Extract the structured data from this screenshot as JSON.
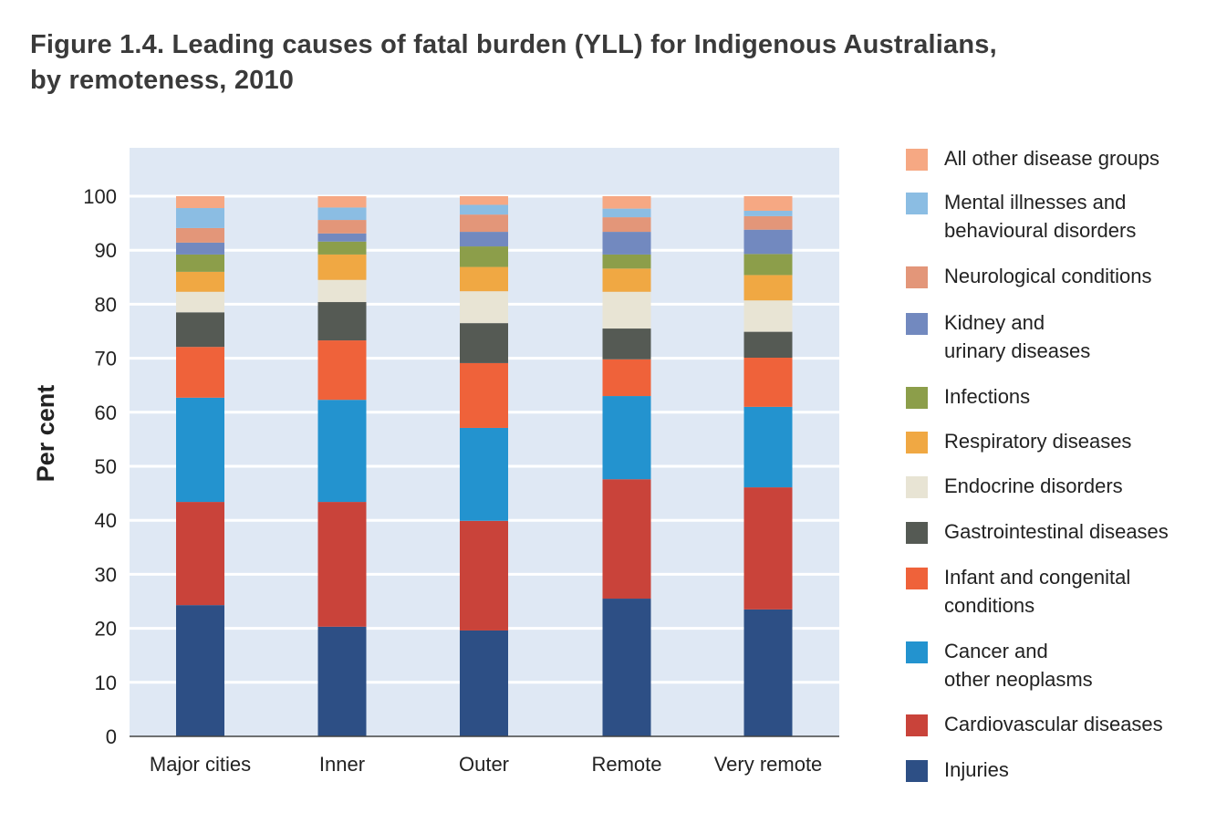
{
  "chart_data": {
    "type": "bar",
    "stacked": true,
    "title": "Figure 1.4. Leading causes of fatal burden (YLL) for Indigenous Australians, by remoteness, 2010",
    "title_lines": [
      "Figure 1.4. Leading causes of fatal burden (YLL) for Indigenous Australians,",
      "by remoteness, 2010"
    ],
    "xlabel": "",
    "ylabel": "Per cent",
    "ylim": [
      0,
      100
    ],
    "yticks": [
      0,
      10,
      20,
      30,
      40,
      50,
      60,
      70,
      80,
      90,
      100
    ],
    "grid": true,
    "legend_position": "right",
    "categories": [
      "Major cities",
      "Inner",
      "Outer",
      "Remote",
      "Very remote"
    ],
    "series": [
      {
        "name": "Injuries",
        "color": "#2d4f85",
        "values": [
          24.3,
          20.3,
          19.6,
          25.5,
          23.5
        ]
      },
      {
        "name": "Cardiovascular diseases",
        "color": "#c9433a",
        "values": [
          19.1,
          23.1,
          20.3,
          22.1,
          22.6
        ]
      },
      {
        "name": "Cancer and other neoplasms",
        "color": "#2393cf",
        "values": [
          19.3,
          18.9,
          17.2,
          15.4,
          14.9
        ]
      },
      {
        "name": "Infant and congenital conditions",
        "color": "#ef623a",
        "values": [
          9.4,
          11.0,
          12.0,
          6.8,
          9.1
        ]
      },
      {
        "name": "Gastrointestinal diseases",
        "color": "#555a54",
        "values": [
          6.4,
          7.1,
          7.4,
          5.7,
          4.8
        ]
      },
      {
        "name": "Endocrine disorders",
        "color": "#e8e4d4",
        "values": [
          3.8,
          4.1,
          5.9,
          6.8,
          5.8
        ]
      },
      {
        "name": "Respiratory diseases",
        "color": "#f0a843",
        "values": [
          3.7,
          4.7,
          4.5,
          4.3,
          4.7
        ]
      },
      {
        "name": "Infections",
        "color": "#8c9e4a",
        "values": [
          3.2,
          2.4,
          3.8,
          2.6,
          3.9
        ]
      },
      {
        "name": "Kidney and urinary diseases",
        "color": "#7289bf",
        "values": [
          2.2,
          1.5,
          2.7,
          4.2,
          4.5
        ]
      },
      {
        "name": "Neurological conditions",
        "color": "#e39679",
        "values": [
          2.7,
          2.5,
          3.2,
          2.7,
          2.5
        ]
      },
      {
        "name": "Mental illnesses and behavioural disorders",
        "color": "#8bbde3",
        "values": [
          3.7,
          2.3,
          1.8,
          1.6,
          1.0
        ]
      },
      {
        "name": "All other disease groups",
        "color": "#f6a883",
        "values": [
          2.2,
          2.1,
          1.6,
          2.3,
          2.7
        ]
      }
    ],
    "legend": [
      {
        "lines": [
          "All other disease groups"
        ],
        "color": "#f6a883"
      },
      {
        "lines": [
          "Mental illnesses and",
          "behavioural disorders"
        ],
        "color": "#8bbde3"
      },
      {
        "lines": [
          "Neurological conditions"
        ],
        "color": "#e39679"
      },
      {
        "lines": [
          "Kidney and",
          "urinary diseases"
        ],
        "color": "#7289bf"
      },
      {
        "lines": [
          "Infections"
        ],
        "color": "#8c9e4a"
      },
      {
        "lines": [
          "Respiratory diseases"
        ],
        "color": "#f0a843"
      },
      {
        "lines": [
          "Endocrine disorders"
        ],
        "color": "#e8e4d4"
      },
      {
        "lines": [
          "Gastrointestinal diseases"
        ],
        "color": "#555a54"
      },
      {
        "lines": [
          "Infant and congenital",
          "conditions"
        ],
        "color": "#ef623a"
      },
      {
        "lines": [
          "Cancer and",
          "other neoplasms"
        ],
        "color": "#2393cf"
      },
      {
        "lines": [
          "Cardiovascular diseases"
        ],
        "color": "#c9433a"
      },
      {
        "lines": [
          "Injuries"
        ],
        "color": "#2d4f85"
      }
    ],
    "plot_background": "#dfe8f4"
  }
}
